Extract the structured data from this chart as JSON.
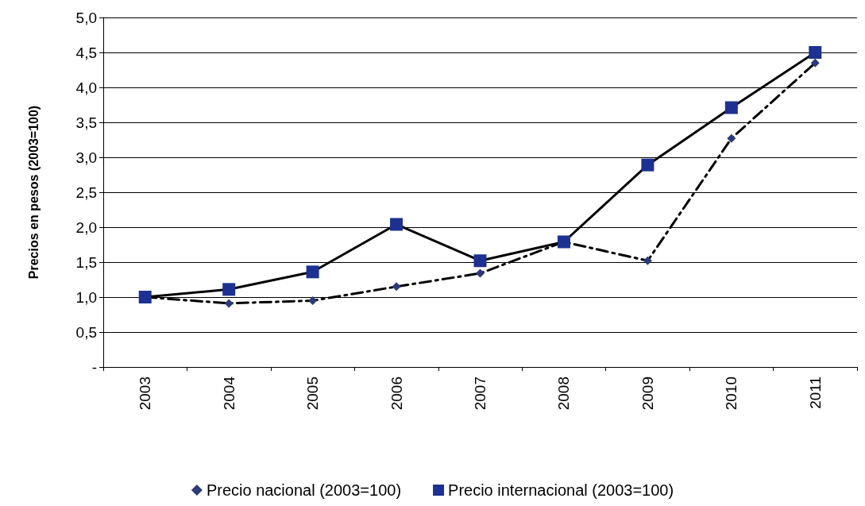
{
  "chart_data": {
    "type": "line",
    "ylabel": "Precios en pesos (2003=100)",
    "categories": [
      "2003",
      "2004",
      "2005",
      "2006",
      "2007",
      "2008",
      "2009",
      "2010",
      "2011"
    ],
    "series": [
      {
        "name": "Precio nacional (2003=100)",
        "color": "#2b3a78",
        "marker": "diamond",
        "line_style": "dashed",
        "values": [
          1.0,
          0.91,
          0.95,
          1.15,
          1.34,
          1.79,
          1.52,
          3.27,
          4.35
        ]
      },
      {
        "name": "Precio internacional (2003=100)",
        "color": "#1c3192",
        "marker": "square",
        "line_style": "solid",
        "values": [
          1.0,
          1.11,
          1.36,
          2.04,
          1.52,
          1.79,
          2.89,
          3.71,
          4.5
        ]
      }
    ],
    "ylim": [
      0,
      5
    ],
    "yticks": [
      {
        "value": 0,
        "label": "-"
      },
      {
        "value": 0.5,
        "label": "0,5"
      },
      {
        "value": 1,
        "label": "1,0"
      },
      {
        "value": 1.5,
        "label": "1,5"
      },
      {
        "value": 2,
        "label": "2,0"
      },
      {
        "value": 2.5,
        "label": "2,5"
      },
      {
        "value": 3,
        "label": "3,0"
      },
      {
        "value": 3.5,
        "label": "3,5"
      },
      {
        "value": 4,
        "label": "4,0"
      },
      {
        "value": 4.5,
        "label": "4,5"
      },
      {
        "value": 5,
        "label": "5,0"
      }
    ],
    "grid": "y",
    "legend": "bottom"
  }
}
